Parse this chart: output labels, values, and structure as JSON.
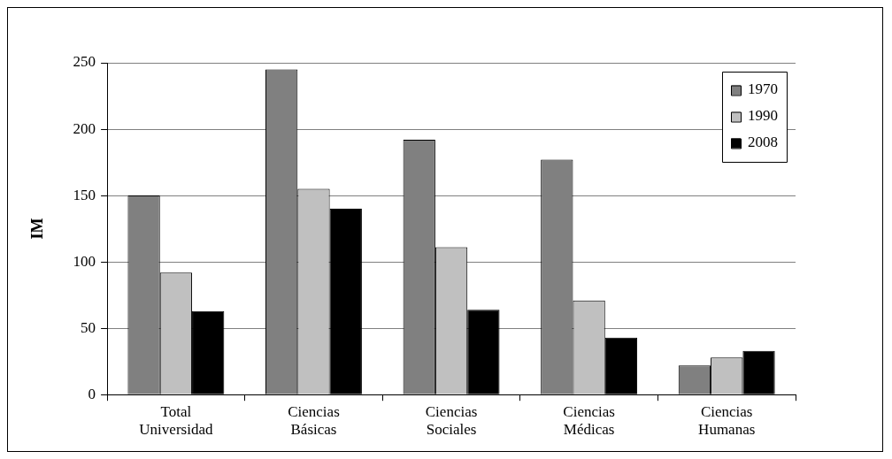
{
  "chart_data": {
    "type": "bar",
    "ylabel": "IM",
    "categories": [
      "Total Universidad",
      "Ciencias Básicas",
      "Ciencias Sociales",
      "Ciencias Médicas",
      "Ciencias Humanas"
    ],
    "series": [
      {
        "name": "1970",
        "color": "#808080",
        "values": [
          150,
          245,
          192,
          177,
          22
        ]
      },
      {
        "name": "1990",
        "color": "#c0c0c0",
        "values": [
          92,
          155,
          111,
          71,
          28
        ]
      },
      {
        "name": "2008",
        "color": "#000000",
        "values": [
          63,
          140,
          64,
          43,
          33
        ]
      }
    ],
    "ylim": [
      0,
      250
    ],
    "yticks": [
      0,
      50,
      100,
      150,
      200,
      250
    ],
    "grid": "y",
    "legend": "top right"
  }
}
